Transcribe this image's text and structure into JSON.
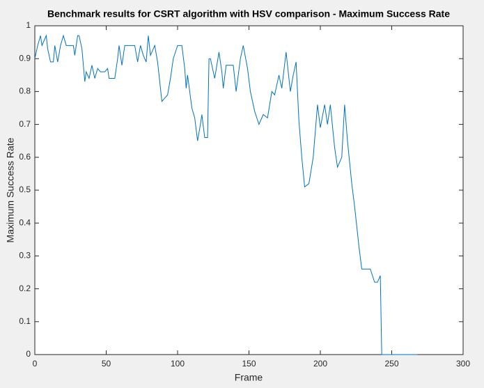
{
  "chart_data": {
    "type": "line",
    "title": "Benchmark results for CSRT algorithm with HSV comparison - Maximum Success Rate",
    "x_label": "Frame",
    "y_label": "Maximum Success Rate",
    "xlim": [
      0,
      300
    ],
    "ylim": [
      0,
      1
    ],
    "xticks": [
      0,
      50,
      100,
      150,
      200,
      250,
      300
    ],
    "yticks": [
      0,
      0.1,
      0.2,
      0.3,
      0.4,
      0.5,
      0.6,
      0.7,
      0.8,
      0.9,
      1
    ],
    "series": [
      {
        "color": "#0072bd",
        "x": [
          0,
          2,
          4,
          5,
          6,
          8,
          9,
          11,
          12,
          13,
          14,
          16,
          18,
          20,
          22,
          25,
          27,
          28,
          30,
          31,
          33,
          35,
          36,
          38,
          40,
          42,
          44,
          46,
          49,
          51,
          52,
          56,
          58,
          59,
          61,
          63,
          66,
          70,
          72,
          74,
          76,
          78,
          79.5,
          81,
          84,
          86,
          89,
          91,
          93,
          95,
          97,
          100,
          103,
          105,
          106,
          107,
          110,
          112,
          114,
          116,
          117,
          119,
          121,
          122,
          123,
          126,
          129,
          131,
          132,
          134,
          139,
          141,
          144,
          146,
          149,
          151,
          154,
          157,
          160,
          163,
          166,
          168,
          171,
          173,
          176,
          179,
          181,
          183,
          185,
          187,
          189,
          192,
          195,
          198,
          200,
          203,
          205,
          207,
          210,
          212,
          215,
          217,
          219,
          222,
          224,
          227,
          229,
          233,
          235,
          238,
          240,
          242,
          243,
          268
        ],
        "values": [
          0.9,
          0.94,
          0.97,
          0.94,
          0.95,
          0.97,
          0.93,
          0.89,
          0.89,
          0.89,
          0.94,
          0.89,
          0.94,
          0.97,
          0.94,
          0.94,
          0.94,
          0.91,
          0.97,
          0.97,
          0.93,
          0.83,
          0.86,
          0.84,
          0.88,
          0.84,
          0.87,
          0.86,
          0.86,
          0.87,
          0.84,
          0.84,
          0.9,
          0.94,
          0.88,
          0.94,
          0.94,
          0.94,
          0.89,
          0.94,
          0.91,
          0.89,
          0.97,
          0.91,
          0.94,
          0.89,
          0.77,
          0.78,
          0.79,
          0.84,
          0.9,
          0.94,
          0.94,
          0.87,
          0.81,
          0.85,
          0.75,
          0.72,
          0.65,
          0.7,
          0.73,
          0.66,
          0.66,
          0.9,
          0.9,
          0.84,
          0.92,
          0.86,
          0.81,
          0.88,
          0.88,
          0.8,
          0.9,
          0.94,
          0.87,
          0.8,
          0.74,
          0.7,
          0.73,
          0.72,
          0.8,
          0.79,
          0.85,
          0.81,
          0.92,
          0.8,
          0.85,
          0.89,
          0.71,
          0.6,
          0.51,
          0.52,
          0.6,
          0.76,
          0.69,
          0.76,
          0.7,
          0.76,
          0.63,
          0.57,
          0.6,
          0.76,
          0.65,
          0.52,
          0.45,
          0.33,
          0.26,
          0.26,
          0.26,
          0.22,
          0.22,
          0.24,
          0,
          0
        ]
      }
    ]
  }
}
